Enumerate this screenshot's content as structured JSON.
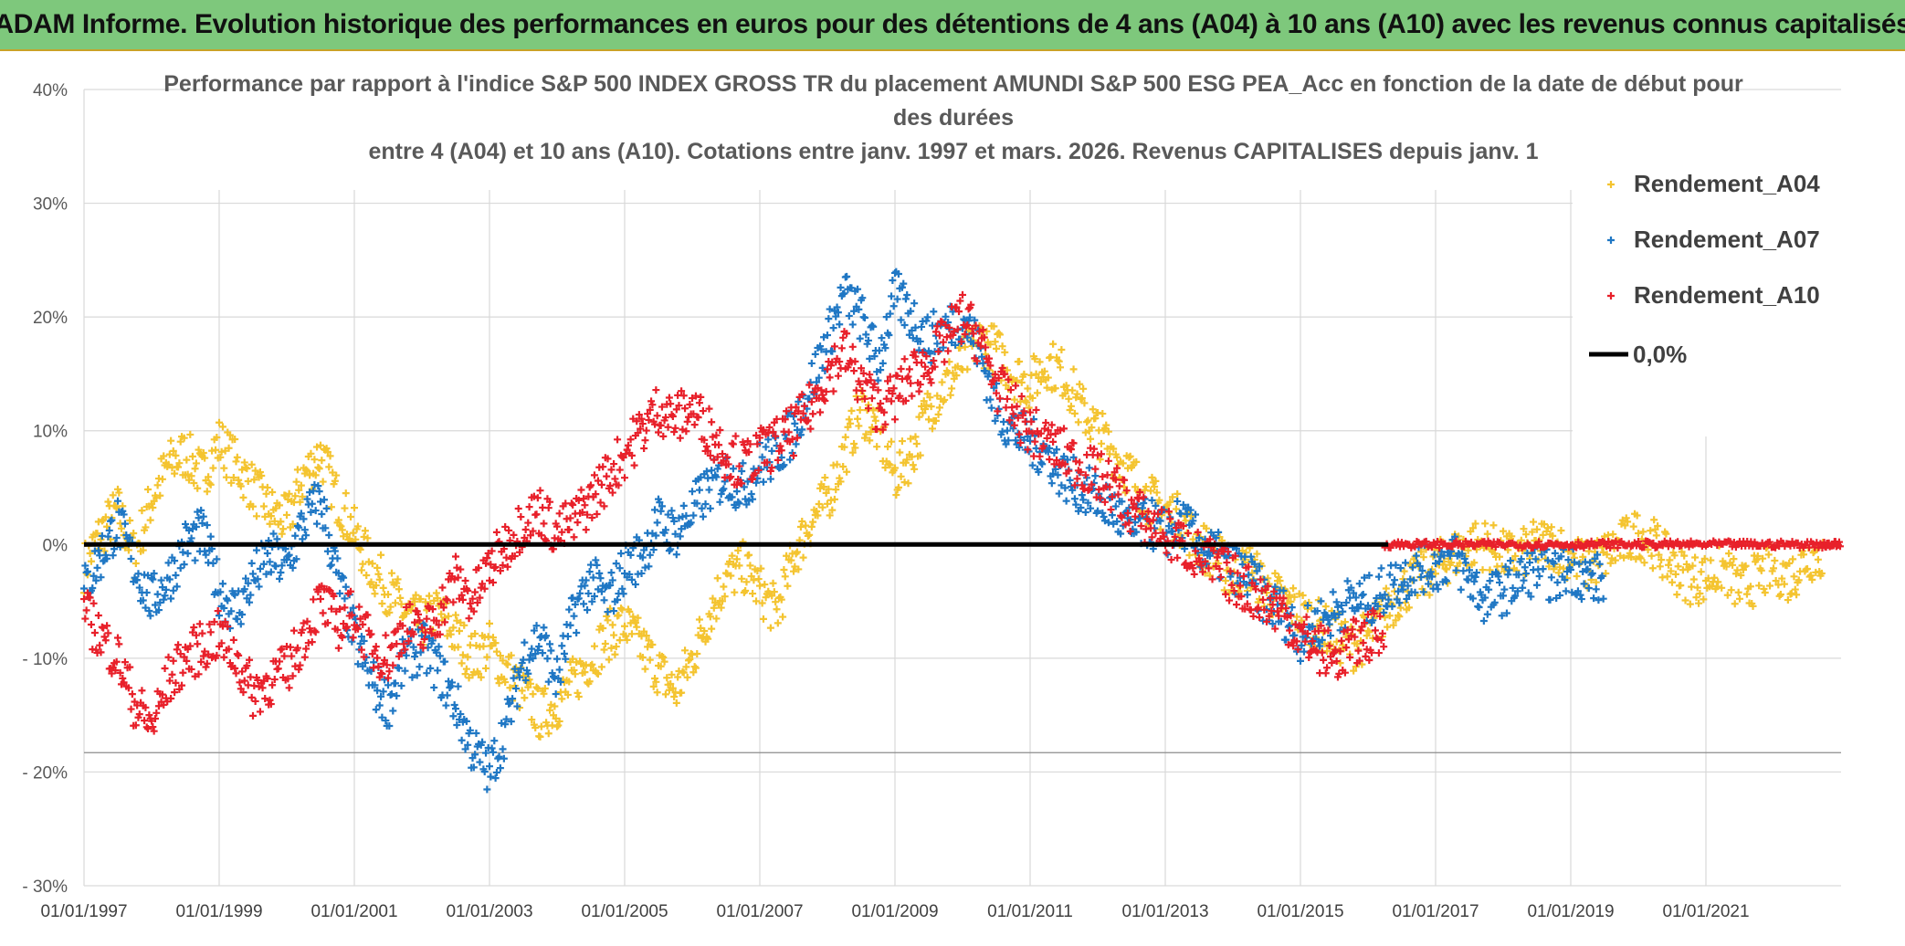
{
  "banner": {
    "title": "ADAM Informe. Evolution historique des performances en euros pour des détentions de 4 ans (A04) à 10 ans (A10) avec les revenus connus capitalisés"
  },
  "colors": {
    "banner_bg": "#7ec87c",
    "a04": "#f4c430",
    "a07": "#1f77c4",
    "a10": "#e8202a",
    "zero_line": "#000000",
    "grid": "#d9d9d9"
  },
  "chart_data": {
    "type": "scatter",
    "title_lines": [
      "Performance par rapport à l'indice S&P 500 INDEX GROSS TR  du placement AMUNDI S&P 500 ESG PEA_Acc en fonction de la date de début pour",
      "des durées",
      "entre 4 (A04) et 10 ans (A10). Cotations entre janv. 1997 et mars. 2026. Revenus CAPITALISES depuis janv. 1"
    ],
    "xlabel": "",
    "ylabel": "",
    "x_range": [
      1997.0,
      2023.0
    ],
    "ylim": [
      -30,
      40
    ],
    "y_ticks": [
      {
        "value": 40,
        "label": "40%"
      },
      {
        "value": 30,
        "label": "30%"
      },
      {
        "value": 20,
        "label": "20%"
      },
      {
        "value": 10,
        "label": "10%"
      },
      {
        "value": 0,
        "label": "0%"
      },
      {
        "value": -10,
        "label": "- 10%"
      },
      {
        "value": -20,
        "label": "- 20%"
      },
      {
        "value": -30,
        "label": "- 30%"
      }
    ],
    "x_ticks": [
      {
        "value": 1997,
        "label": "01/01/1997"
      },
      {
        "value": 1999,
        "label": "01/01/1999"
      },
      {
        "value": 2001,
        "label": "01/01/2001"
      },
      {
        "value": 2003,
        "label": "01/01/2003"
      },
      {
        "value": 2005,
        "label": "01/01/2005"
      },
      {
        "value": 2007,
        "label": "01/01/2007"
      },
      {
        "value": 2009,
        "label": "01/01/2009"
      },
      {
        "value": 2011,
        "label": "01/01/2011"
      },
      {
        "value": 2013,
        "label": "01/01/2013"
      },
      {
        "value": 2015,
        "label": "01/01/2015"
      },
      {
        "value": 2017,
        "label": "01/01/2017"
      },
      {
        "value": 2019,
        "label": "01/01/2019"
      },
      {
        "value": 2021,
        "label": "01/01/2021"
      }
    ],
    "grid": true,
    "legend_position": "top-right",
    "legend": [
      "Rendement_A04",
      "Rendement_A07",
      "Rendement_A10",
      "0,0%"
    ],
    "series": [
      {
        "name": "Rendement_A04",
        "color": "#f4c430",
        "x": [
          1997.0,
          1997.25,
          1997.5,
          1997.75,
          1998.0,
          1998.25,
          1998.5,
          1998.75,
          1999.0,
          1999.25,
          1999.5,
          1999.75,
          2000.0,
          2000.25,
          2000.5,
          2000.75,
          2001.0,
          2001.25,
          2001.5,
          2001.75,
          2002.0,
          2002.25,
          2002.5,
          2002.75,
          2003.0,
          2003.25,
          2003.5,
          2003.75,
          2004.0,
          2004.25,
          2004.5,
          2004.75,
          2005.0,
          2005.25,
          2005.5,
          2005.75,
          2006.0,
          2006.25,
          2006.5,
          2006.75,
          2007.0,
          2007.25,
          2007.5,
          2007.75,
          2008.0,
          2008.25,
          2008.5,
          2008.75,
          2009.0,
          2009.25,
          2009.5,
          2009.75,
          2010.0,
          2010.25,
          2010.5,
          2010.75,
          2011.0,
          2011.25,
          2011.5,
          2011.75,
          2012.0,
          2012.25,
          2012.5,
          2012.75,
          2013.0,
          2013.25,
          2013.5,
          2013.75,
          2014.0,
          2014.25,
          2014.5,
          2014.75,
          2015.0,
          2015.25,
          2015.5,
          2015.75,
          2016.0,
          2016.25,
          2016.5,
          2016.75,
          2017.0,
          2017.25,
          2017.5,
          2017.75,
          2018.0,
          2018.25,
          2018.5,
          2018.75,
          2019.0,
          2019.25,
          2019.5,
          2019.75,
          2020.0,
          2020.25,
          2020.5,
          2020.75,
          2021.0,
          2021.25,
          2021.5,
          2021.75,
          2022.0,
          2022.25,
          2022.5
        ],
        "y": [
          -2,
          1,
          3,
          -1,
          4,
          7,
          8,
          6,
          9,
          7,
          5,
          3,
          2,
          6,
          8,
          4,
          1,
          -2,
          -4,
          -6,
          -7,
          -6,
          -8,
          -10,
          -9,
          -11,
          -13,
          -15,
          -14,
          -12,
          -10,
          -8,
          -7,
          -9,
          -11,
          -13,
          -10,
          -6,
          -3,
          -2,
          -4,
          -6,
          -1,
          2,
          4,
          8,
          12,
          10,
          6,
          8,
          12,
          14,
          16,
          18,
          17,
          15,
          14,
          16,
          15,
          12,
          10,
          8,
          6,
          4,
          3,
          2,
          0,
          -1,
          -3,
          -2,
          -4,
          -5,
          -6,
          -7,
          -8,
          -9,
          -8,
          -6,
          -4,
          -3,
          -2,
          -1,
          0,
          0,
          -1,
          -1,
          0,
          0,
          -1,
          -2,
          -1,
          0,
          1,
          0,
          -2,
          -3,
          -3,
          -2,
          -4,
          -3,
          -2,
          -3,
          -1
        ]
      },
      {
        "name": "Rendement_A07",
        "color": "#1f77c4",
        "x": [
          1997.0,
          1997.25,
          1997.5,
          1997.75,
          1998.0,
          1998.25,
          1998.5,
          1998.75,
          1999.0,
          1999.25,
          1999.5,
          1999.75,
          2000.0,
          2000.25,
          2000.5,
          2000.75,
          2001.0,
          2001.25,
          2001.5,
          2001.75,
          2002.0,
          2002.25,
          2002.5,
          2002.75,
          2003.0,
          2003.25,
          2003.5,
          2003.75,
          2004.0,
          2004.25,
          2004.5,
          2004.75,
          2005.0,
          2005.25,
          2005.5,
          2005.75,
          2006.0,
          2006.25,
          2006.5,
          2006.75,
          2007.0,
          2007.25,
          2007.5,
          2007.75,
          2008.0,
          2008.25,
          2008.5,
          2008.75,
          2009.0,
          2009.25,
          2009.5,
          2009.75,
          2010.0,
          2010.25,
          2010.5,
          2010.75,
          2011.0,
          2011.25,
          2011.5,
          2011.75,
          2012.0,
          2012.25,
          2012.5,
          2012.75,
          2013.0,
          2013.25,
          2013.5,
          2013.75,
          2014.0,
          2014.25,
          2014.5,
          2014.75,
          2015.0,
          2015.25,
          2015.5,
          2015.75,
          2016.0,
          2016.25,
          2016.5,
          2016.75,
          2017.0,
          2017.25,
          2017.5,
          2017.75,
          2018.0,
          2018.25,
          2018.5,
          2018.75,
          2019.0,
          2019.25
        ],
        "y": [
          -4,
          -1,
          2,
          -2,
          -5,
          -3,
          0,
          1,
          -4,
          -6,
          -3,
          -1,
          -2,
          2,
          4,
          -3,
          -8,
          -12,
          -14,
          -10,
          -9,
          -11,
          -14,
          -18,
          -20,
          -16,
          -10,
          -8,
          -12,
          -6,
          -3,
          -5,
          -2,
          -1,
          2,
          1,
          3,
          5,
          6,
          5,
          7,
          8,
          10,
          14,
          18,
          22,
          20,
          16,
          22,
          20,
          18,
          19,
          20,
          17,
          12,
          10,
          9,
          8,
          6,
          5,
          4,
          3,
          1,
          2,
          1,
          2,
          0,
          -1,
          -2,
          -3,
          -5,
          -6,
          -8,
          -7,
          -6,
          -5,
          -5,
          -4,
          -3,
          -2,
          -2,
          -1,
          -3,
          -5,
          -4,
          -3,
          -2,
          -3,
          -2,
          -3
        ]
      },
      {
        "name": "Rendement_A10",
        "color": "#e8202a",
        "x": [
          1997.0,
          1997.25,
          1997.5,
          1997.75,
          1998.0,
          1998.25,
          1998.5,
          1998.75,
          1999.0,
          1999.25,
          1999.5,
          1999.75,
          2000.0,
          2000.25,
          2000.5,
          2000.75,
          2001.0,
          2001.25,
          2001.5,
          2001.75,
          2002.0,
          2002.25,
          2002.5,
          2002.75,
          2003.0,
          2003.25,
          2003.5,
          2003.75,
          2004.0,
          2004.25,
          2004.5,
          2004.75,
          2005.0,
          2005.25,
          2005.5,
          2005.75,
          2006.0,
          2006.25,
          2006.5,
          2006.75,
          2007.0,
          2007.25,
          2007.5,
          2007.75,
          2008.0,
          2008.25,
          2008.5,
          2008.75,
          2009.0,
          2009.25,
          2009.5,
          2009.75,
          2010.0,
          2010.25,
          2010.5,
          2010.75,
          2011.0,
          2011.25,
          2011.5,
          2011.75,
          2012.0,
          2012.25,
          2012.5,
          2012.75,
          2013.0,
          2013.25,
          2013.5,
          2013.75,
          2014.0,
          2014.25,
          2014.5,
          2014.75,
          2015.0,
          2015.25,
          2015.5,
          2015.75,
          2016.0
        ],
        "y": [
          -6,
          -8,
          -10,
          -14,
          -16,
          -12,
          -10,
          -9,
          -8,
          -10,
          -13,
          -12,
          -11,
          -8,
          -5,
          -7,
          -6,
          -9,
          -10,
          -7,
          -8,
          -6,
          -3,
          -5,
          -2,
          0,
          2,
          3,
          1,
          2,
          4,
          6,
          8,
          10,
          12,
          11,
          12,
          10,
          8,
          7,
          8,
          9,
          10,
          12,
          15,
          17,
          14,
          12,
          13,
          15,
          16,
          18,
          20,
          18,
          14,
          12,
          10,
          9,
          8,
          7,
          6,
          5,
          3,
          2,
          1,
          0,
          -1,
          -2,
          -3,
          -4,
          -5,
          -6,
          -8,
          -9,
          -10,
          -9,
          -8
        ]
      },
      {
        "name": "Rendement_A10",
        "color": "#e8202a",
        "x": [
          2016.25,
          2016.75,
          2017.25,
          2017.75,
          2018.25,
          2018.75,
          2019.25,
          2019.75,
          2020.25,
          2020.75,
          2021.25,
          2021.75,
          2022.25,
          2022.75
        ],
        "y": [
          0,
          0,
          0,
          0,
          0,
          0,
          0,
          0,
          0,
          0,
          0,
          0,
          0,
          0
        ]
      }
    ],
    "reference_line": {
      "name": "0,0%",
      "y": 0,
      "color": "#000000"
    }
  }
}
